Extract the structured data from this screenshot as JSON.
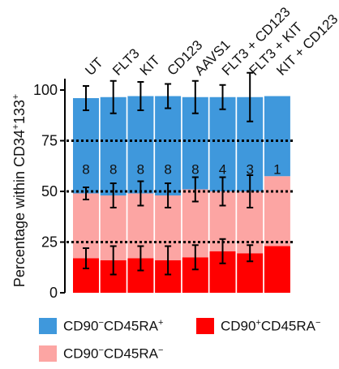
{
  "chart_data": {
    "type": "bar",
    "stacked": true,
    "title": "",
    "xlabel": "",
    "ylabel": "Percentage within CD34+133+",
    "ylabel_parts": [
      "Percentage within CD34",
      "+",
      "133",
      "+"
    ],
    "ylim": [
      0,
      110
    ],
    "yticks": [
      0,
      25,
      50,
      75,
      100
    ],
    "grid": false,
    "reference_lines": [
      25,
      50,
      75
    ],
    "categories": [
      "UT",
      "FLT3",
      "KIT",
      "CD123",
      "AAVS1",
      "FLT3 + CD123",
      "FLT3 + KIT",
      "KIT + CD123"
    ],
    "bar_labels": [
      "8",
      "8",
      "8",
      "8",
      "8",
      "4",
      "3",
      "1"
    ],
    "series": [
      {
        "name": "CD90+CD45RA−",
        "color": "#ff0000",
        "cumulative": [
          17,
          16,
          17,
          16,
          17.5,
          20.5,
          19.5,
          23
        ],
        "errors": [
          5,
          7,
          6,
          7,
          6,
          6,
          4,
          0
        ]
      },
      {
        "name": "CD90−CD45RA−",
        "color": "#fca5a3",
        "cumulative": [
          49,
          48,
          49,
          48,
          51,
          50,
          50,
          57.5
        ],
        "errors": [
          3,
          6,
          6,
          6,
          6,
          7,
          8,
          0
        ]
      },
      {
        "name": "CD90−CD45RA+",
        "color": "#3f98dc",
        "cumulative": [
          96,
          96.5,
          97,
          97,
          96.5,
          96.5,
          96.5,
          97
        ],
        "errors": [
          6,
          8,
          7,
          6,
          8,
          6,
          12,
          0
        ]
      }
    ],
    "legend": [
      {
        "key": "blue",
        "color": "#3f98dc",
        "parts": [
          "CD90",
          "−",
          "CD45RA",
          "+"
        ]
      },
      {
        "key": "red",
        "color": "#ff0000",
        "parts": [
          "CD90",
          "+",
          "CD45RA",
          "−"
        ]
      },
      {
        "key": "pink",
        "color": "#fca5a3",
        "parts": [
          "CD90",
          "−",
          "CD45RA",
          "−"
        ]
      }
    ]
  }
}
